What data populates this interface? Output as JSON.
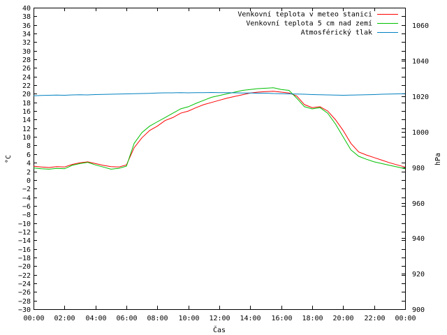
{
  "chart_data": {
    "type": "line",
    "xlabel": "Čas",
    "ylabel_left": "°C",
    "ylabel_right": "hPa",
    "x_range": [
      "00:00",
      "24:00"
    ],
    "x_ticks": [
      "00:00",
      "02:00",
      "04:00",
      "06:00",
      "08:00",
      "10:00",
      "12:00",
      "14:00",
      "16:00",
      "18:00",
      "20:00",
      "22:00",
      "00:00"
    ],
    "y_left_range": [
      -30,
      40
    ],
    "y_left_step": 2,
    "y_right_range": [
      900,
      1070
    ],
    "y_right_ticks": [
      900,
      920,
      940,
      960,
      980,
      1000,
      1020,
      1040,
      1060
    ],
    "grid": false,
    "legend_position": "top-right",
    "x_hours": [
      0,
      0.5,
      1,
      1.5,
      2,
      2.5,
      3,
      3.5,
      4,
      4.5,
      5,
      5.5,
      6,
      6.5,
      7,
      7.5,
      8,
      8.5,
      9,
      9.5,
      10,
      10.5,
      11,
      11.5,
      12,
      12.5,
      13,
      13.5,
      14,
      14.5,
      15,
      15.5,
      16,
      16.5,
      17,
      17.5,
      18,
      18.5,
      19,
      19.5,
      20,
      20.5,
      21,
      21.5,
      22,
      22.5,
      23,
      23.5,
      24
    ],
    "series": [
      {
        "name": "Venkovní teplota v meteo stanici",
        "axis": "left",
        "color": "#ff0000",
        "values": [
          3.2,
          3.0,
          2.9,
          3.1,
          3.0,
          3.6,
          4.0,
          4.2,
          3.8,
          3.4,
          3.1,
          3.0,
          3.5,
          7.5,
          9.8,
          11.5,
          12.5,
          13.8,
          14.5,
          15.5,
          16.0,
          16.8,
          17.5,
          18.0,
          18.5,
          19.0,
          19.4,
          19.8,
          20.2,
          20.4,
          20.5,
          20.6,
          20.4,
          20.2,
          19.5,
          17.5,
          16.8,
          17.0,
          16.0,
          14.0,
          11.5,
          8.5,
          6.5,
          5.8,
          5.2,
          4.6,
          4.0,
          3.5,
          3.0
        ]
      },
      {
        "name": "Venkovní teplota 5 cm nad zemí",
        "axis": "left",
        "color": "#00c000",
        "values": [
          2.8,
          2.6,
          2.5,
          2.7,
          2.6,
          3.4,
          3.8,
          4.1,
          3.5,
          3.0,
          2.5,
          2.7,
          3.2,
          8.5,
          11.0,
          12.5,
          13.5,
          14.5,
          15.5,
          16.5,
          17.0,
          17.8,
          18.5,
          19.2,
          19.6,
          20.0,
          20.4,
          20.8,
          21.0,
          21.2,
          21.3,
          21.4,
          21.0,
          20.8,
          19.0,
          17.0,
          16.5,
          16.8,
          15.5,
          13.0,
          10.0,
          7.0,
          5.5,
          4.8,
          4.2,
          3.8,
          3.4,
          3.0,
          2.6
        ]
      },
      {
        "name": "Atmosférický tlak",
        "axis": "right",
        "color": "#0080c0",
        "values": [
          1020.3,
          1020.5,
          1020.6,
          1020.7,
          1020.6,
          1020.8,
          1020.9,
          1020.8,
          1021.0,
          1021.1,
          1021.2,
          1021.3,
          1021.4,
          1021.5,
          1021.6,
          1021.7,
          1021.9,
          1022.0,
          1022.0,
          1022.1,
          1022.0,
          1022.1,
          1022.1,
          1022.2,
          1022.1,
          1022.1,
          1022.0,
          1021.9,
          1021.9,
          1021.8,
          1021.8,
          1021.6,
          1021.5,
          1021.4,
          1021.3,
          1021.2,
          1021.0,
          1020.9,
          1020.8,
          1020.7,
          1020.6,
          1020.7,
          1020.8,
          1020.9,
          1021.0,
          1021.2,
          1021.3,
          1021.4,
          1021.5
        ]
      }
    ]
  }
}
